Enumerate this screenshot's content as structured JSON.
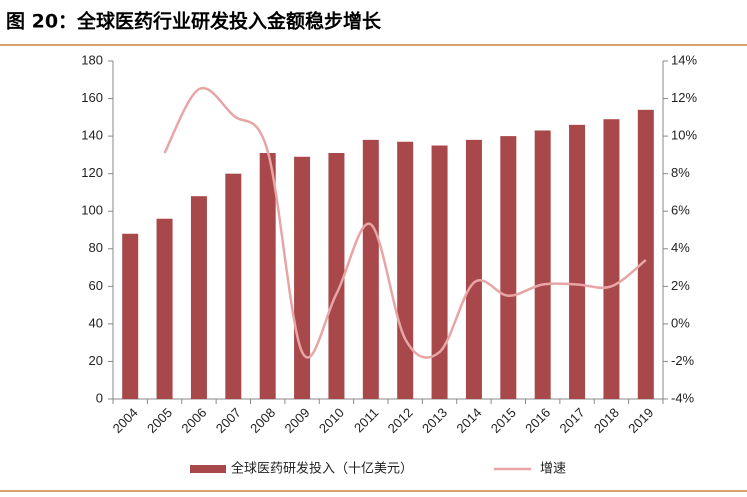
{
  "chart_data": {
    "type": "bar",
    "title": "图 20：全球医药行业研发投入金额稳步增长",
    "categories": [
      "2004",
      "2005",
      "2006",
      "2007",
      "2008",
      "2009",
      "2010",
      "2011",
      "2012",
      "2013",
      "2014",
      "2015",
      "2016",
      "2017",
      "2018",
      "2019"
    ],
    "series": [
      {
        "name": "全球医药研发投入（十亿美元）",
        "type": "bar",
        "color": "#a8484a",
        "values": [
          88,
          96,
          108,
          120,
          131,
          129,
          131,
          138,
          137,
          135,
          138,
          140,
          143,
          146,
          149,
          154
        ]
      },
      {
        "name": "增速",
        "type": "line",
        "axis": "y2",
        "color": "#e8a5a6",
        "values": [
          null,
          9.1,
          12.5,
          11.1,
          9.2,
          -1.5,
          1.6,
          5.3,
          -0.8,
          -1.5,
          2.2,
          1.5,
          2.1,
          2.1,
          2.0,
          3.4
        ]
      }
    ],
    "ylim": [
      0,
      180
    ],
    "yticks": [
      0,
      20,
      40,
      60,
      80,
      100,
      120,
      140,
      160,
      180
    ],
    "y2lim": [
      -4,
      14
    ],
    "y2ticks": [
      {
        "value": -4,
        "label": "-4%"
      },
      {
        "value": -2,
        "label": "-2%"
      },
      {
        "value": 0,
        "label": "0%"
      },
      {
        "value": 2,
        "label": "2%"
      },
      {
        "value": 4,
        "label": "4%"
      },
      {
        "value": 6,
        "label": "6%"
      },
      {
        "value": 8,
        "label": "8%"
      },
      {
        "value": 10,
        "label": "10%"
      },
      {
        "value": 12,
        "label": "12%"
      },
      {
        "value": 14,
        "label": "14%"
      }
    ],
    "grid": false,
    "legend": "bottom"
  }
}
